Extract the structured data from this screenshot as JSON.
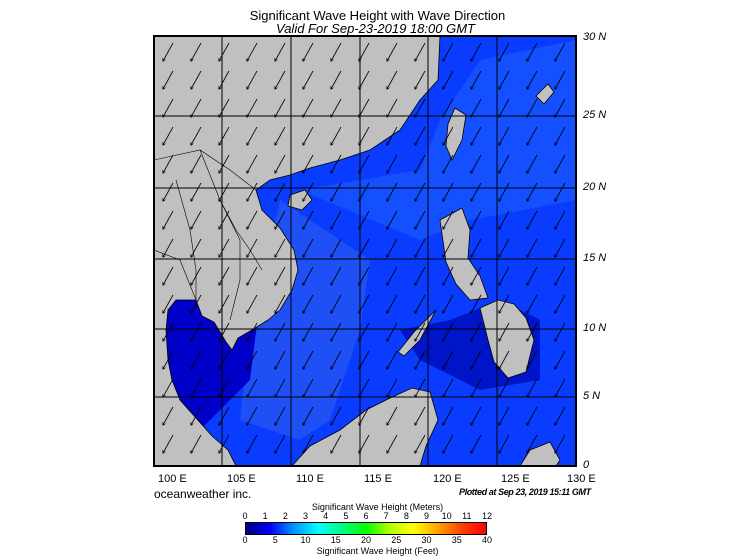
{
  "header": {
    "title": "Significant Wave Height with Wave Direction",
    "subtitle": "Valid For Sep-23-2019 18:00 GMT"
  },
  "map": {
    "lon_labels": [
      "100 E",
      "105 E",
      "110 E",
      "115 E",
      "120 E",
      "125 E",
      "130 E"
    ],
    "lat_labels": [
      "30 N",
      "25 N",
      "20 N",
      "15 N",
      "10 N",
      "5 N",
      "0"
    ],
    "land_color": "#c0c0c0",
    "sea_colors": [
      "#1428ff",
      "#1e50f5",
      "#0a3cff",
      "#0000d2"
    ],
    "arrow_direction": "toward south-west"
  },
  "footer": {
    "brand": "oceanweather inc.",
    "plotted": "Plotted at Sep 23, 2019 15:11 GMT"
  },
  "legend": {
    "meters_title": "Significant Wave Height (Meters)",
    "feet_title": "Significant Wave Height (Feet)",
    "meters_ticks": [
      "0",
      "1",
      "2",
      "3",
      "4",
      "5",
      "6",
      "7",
      "8",
      "9",
      "10",
      "11",
      "12"
    ],
    "feet_ticks": [
      "0",
      "5",
      "10",
      "15",
      "20",
      "25",
      "30",
      "35",
      "40"
    ],
    "gradient_colors": [
      "#000080",
      "#0000ff",
      "#0096ff",
      "#00ffff",
      "#00ff80",
      "#00ff00",
      "#b4ff00",
      "#ffff00",
      "#ffa000",
      "#ff4000",
      "#ff0000"
    ]
  }
}
